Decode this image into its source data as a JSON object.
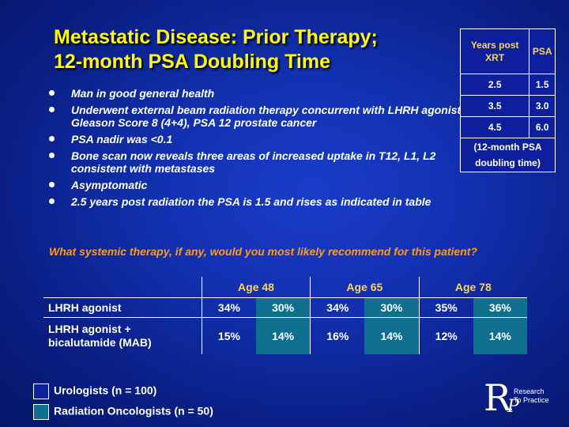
{
  "title": {
    "line1": "Metastatic Disease: Prior Therapy;",
    "line2": "12-month PSA Doubling Time"
  },
  "bullets": [
    "Man in good general health",
    "Underwent external beam radiation therapy concurrent with LHRH agonist for Gleason Score 8 (4+4), PSA 12 prostate cancer",
    "PSA nadir was <0.1",
    "Bone scan now reveals three areas of increased uptake in T12, L1, L2 consistent with metastases",
    "Asymptomatic",
    "2.5 years post radiation the PSA is 1.5 and rises as indicated in table"
  ],
  "psa_table": {
    "header_years": "Years post XRT",
    "header_psa": "PSA",
    "rows": [
      {
        "years": "2.5",
        "psa": "1.5"
      },
      {
        "years": "3.5",
        "psa": "3.0"
      },
      {
        "years": "4.5",
        "psa": "6.0"
      }
    ],
    "note": "(12-month PSA doubling time)"
  },
  "question": "What systemic therapy, if any, would you most likely recommend for this patient?",
  "results": {
    "ages": [
      "Age 48",
      "Age 65",
      "Age 78"
    ],
    "rows": [
      {
        "label": "LHRH agonist",
        "values": [
          "34%",
          "30%",
          "34%",
          "30%",
          "35%",
          "36%"
        ]
      },
      {
        "label": "LHRH agonist + bicalutamide (MAB)",
        "values": [
          "15%",
          "14%",
          "16%",
          "14%",
          "12%",
          "14%"
        ]
      }
    ]
  },
  "legend": {
    "urologists": "Urologists  (n = 100)",
    "radiation": "Radiation Oncologists  (n = 50)",
    "urologists_color": "#0e1f9e",
    "radiation_color": "#0f6f8f"
  },
  "logo": {
    "line1": "Research",
    "line2": "To Practice"
  }
}
